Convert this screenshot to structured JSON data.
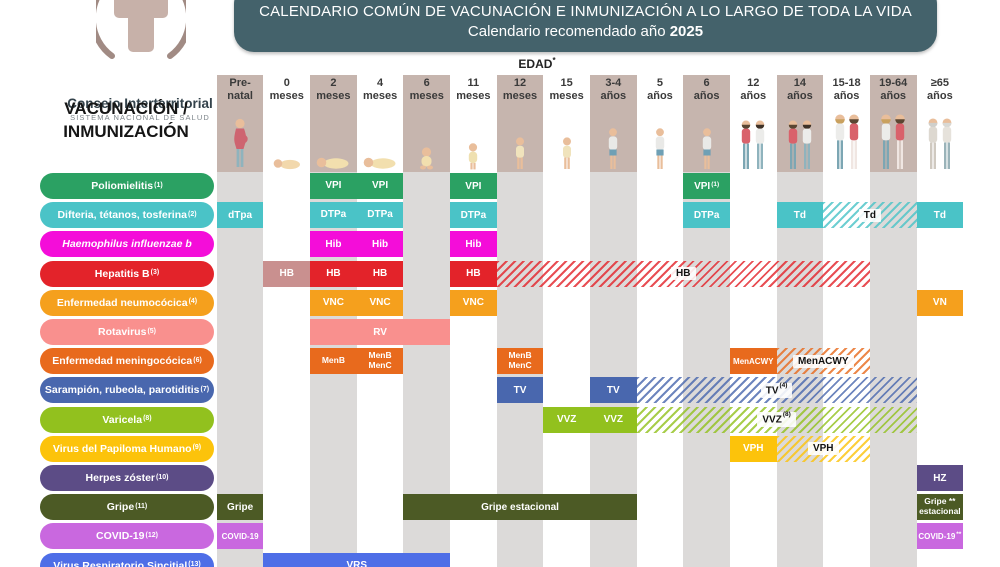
{
  "header": {
    "logo": {
      "title": "Consejo Interterritorial",
      "subtitle": "SISTEMA NACIONAL DE SALUD"
    },
    "banner": {
      "line1": "CALENDARIO COMÚN DE VACUNACIÓN E INMUNIZACIÓN A LO LARGO DE TODA LA VIDA",
      "line2_prefix": "Calendario recomendado año ",
      "line2_year": "2025"
    },
    "age_axis_label": "EDAD",
    "age_axis_sup": "*",
    "left_heading_lines": [
      "VACUNACIÓN /",
      "INMUNIZACIÓN"
    ]
  },
  "colors": {
    "banner": "#44626B",
    "chip": "#C6B5AE",
    "stripe": "#DCDAD9"
  },
  "chart_data": {
    "type": "table",
    "title": "CALENDARIO COMÚN DE VACUNACIÓN E INMUNIZACIÓN A LO LARGO DE TODA LA VIDA",
    "subtitle": "Calendario recomendado año 2025",
    "x_axis": "EDAD*",
    "age_columns": [
      {
        "lines": [
          "Pre-",
          "natal"
        ],
        "chip": true,
        "icon": "pregnant-woman-icon"
      },
      {
        "lines": [
          "0",
          "meses"
        ],
        "chip": false,
        "icon": "newborn-icon"
      },
      {
        "lines": [
          "2",
          "meses"
        ],
        "chip": true,
        "icon": "baby-lying-icon"
      },
      {
        "lines": [
          "4",
          "meses"
        ],
        "chip": false,
        "icon": "baby-lying-icon"
      },
      {
        "lines": [
          "6",
          "meses"
        ],
        "chip": true,
        "icon": "baby-sitting-icon"
      },
      {
        "lines": [
          "11",
          "meses"
        ],
        "chip": false,
        "icon": "baby-standing-icon"
      },
      {
        "lines": [
          "12",
          "meses"
        ],
        "chip": true,
        "icon": "toddler-icon"
      },
      {
        "lines": [
          "15",
          "meses"
        ],
        "chip": false,
        "icon": "toddler-icon"
      },
      {
        "lines": [
          "3-4",
          "años"
        ],
        "chip": true,
        "icon": "child-icon"
      },
      {
        "lines": [
          "5",
          "años"
        ],
        "chip": false,
        "icon": "child-icon"
      },
      {
        "lines": [
          "6",
          "años"
        ],
        "chip": true,
        "icon": "child-icon"
      },
      {
        "lines": [
          "12",
          "años"
        ],
        "chip": false,
        "icon": "teens-icon"
      },
      {
        "lines": [
          "14",
          "años"
        ],
        "chip": true,
        "icon": "teens-icon"
      },
      {
        "lines": [
          "15-18",
          "años"
        ],
        "chip": false,
        "icon": "adults-icon"
      },
      {
        "lines": [
          "19-64",
          "años"
        ],
        "chip": true,
        "icon": "adults-icon"
      },
      {
        "lines": [
          "≥65",
          "años"
        ],
        "chip": false,
        "icon": "elderly-couple-icon"
      }
    ],
    "rows": [
      {
        "name": "Poliomielitis",
        "sup": "(1)",
        "color": "#2BA163",
        "bars": [
          {
            "from": 2,
            "to": 3,
            "type": "solid",
            "labels": [
              "VPI",
              "VPI"
            ]
          },
          {
            "from": 5,
            "to": 5,
            "type": "solid",
            "labels": [
              "VPI"
            ]
          },
          {
            "from": 10,
            "to": 10,
            "type": "solid",
            "labels": [
              {
                "t": "VPI",
                "sup": "(1)"
              }
            ]
          }
        ]
      },
      {
        "name": "Difteria, tétanos, tosferina",
        "sup": "(2)",
        "color": "#4AC3C7",
        "bars": [
          {
            "from": 0,
            "to": 0,
            "type": "solid",
            "labels": [
              "dTpa"
            ]
          },
          {
            "from": 2,
            "to": 3,
            "type": "solid",
            "labels": [
              "DTPa",
              "DTPa"
            ]
          },
          {
            "from": 5,
            "to": 5,
            "type": "solid",
            "labels": [
              "DTPa"
            ]
          },
          {
            "from": 10,
            "to": 10,
            "type": "solid",
            "labels": [
              "DTPa"
            ]
          },
          {
            "from": 12,
            "to": 12,
            "type": "solid",
            "labels": [
              "Td"
            ]
          },
          {
            "from": 13,
            "to": 14,
            "type": "hatch",
            "labels": [
              "Td"
            ]
          },
          {
            "from": 15,
            "to": 15,
            "type": "solid",
            "labels": [
              "Td"
            ]
          }
        ]
      },
      {
        "name": "Haemophilus influenzae b",
        "sup": "",
        "italic": true,
        "color": "#F40DD9",
        "bars": [
          {
            "from": 2,
            "to": 3,
            "type": "solid",
            "labels": [
              "Hib",
              "Hib"
            ]
          },
          {
            "from": 5,
            "to": 5,
            "type": "solid",
            "labels": [
              "Hib"
            ]
          }
        ]
      },
      {
        "name": "Hepatitis B",
        "sup": "(3)",
        "color": "#E3232A",
        "bars": [
          {
            "from": 1,
            "to": 1,
            "type": "solid",
            "bg": "#C9908F",
            "labels": [
              "HB"
            ]
          },
          {
            "from": 2,
            "to": 3,
            "type": "solid",
            "labels": [
              "HB",
              "HB"
            ]
          },
          {
            "from": 5,
            "to": 5,
            "type": "solid",
            "labels": [
              "HB"
            ]
          },
          {
            "from": 6,
            "to": 13,
            "type": "hatch",
            "labels": [
              "HB"
            ]
          }
        ]
      },
      {
        "name": "Enfermedad neumocócica",
        "sup": "(4)",
        "color": "#F5A01D",
        "bars": [
          {
            "from": 2,
            "to": 3,
            "type": "solid",
            "labels": [
              "VNC",
              "VNC"
            ]
          },
          {
            "from": 5,
            "to": 5,
            "type": "solid",
            "labels": [
              "VNC"
            ]
          },
          {
            "from": 15,
            "to": 15,
            "type": "solid",
            "labels": [
              "VN"
            ]
          }
        ]
      },
      {
        "name": "Rotavirus",
        "sup": "(5)",
        "color": "#F9908E",
        "bars": [
          {
            "from": 2,
            "to": 4,
            "type": "solid",
            "labels": [
              "RV"
            ]
          }
        ]
      },
      {
        "name": "Enfermedad meningocócica",
        "sup": "(6)",
        "color": "#E86A1D",
        "bars": [
          {
            "from": 2,
            "to": 3,
            "type": "solid",
            "labels": [
              "MenB",
              {
                "lines": [
                  "MenB",
                  "MenC"
                ]
              }
            ]
          },
          {
            "from": 6,
            "to": 6,
            "type": "solid",
            "labels": [
              {
                "lines": [
                  "MenB",
                  "MenC"
                ]
              }
            ]
          },
          {
            "from": 11,
            "to": 11,
            "type": "solid",
            "small": true,
            "labels": [
              "MenACWY"
            ]
          },
          {
            "from": 12,
            "to": 13,
            "type": "hatch",
            "labels": [
              "MenACWY"
            ]
          }
        ]
      },
      {
        "name": "Sarampión, rubeola, parotiditis",
        "sup": "(7)",
        "color": "#4967AE",
        "bars": [
          {
            "from": 6,
            "to": 6,
            "type": "solid",
            "labels": [
              "TV"
            ]
          },
          {
            "from": 8,
            "to": 8,
            "type": "solid",
            "labels": [
              "TV"
            ]
          },
          {
            "from": 9,
            "to": 14,
            "type": "hatch",
            "labels": [
              {
                "t": "TV",
                "sup": "(4)"
              }
            ]
          }
        ]
      },
      {
        "name": "Varicela",
        "sup": "(8)",
        "color": "#92C11E",
        "bars": [
          {
            "from": 7,
            "to": 8,
            "type": "solid",
            "labels": [
              "VVZ",
              "VVZ"
            ]
          },
          {
            "from": 9,
            "to": 14,
            "type": "hatch",
            "labels": [
              {
                "t": "VVZ",
                "sup": "(8)"
              }
            ]
          }
        ]
      },
      {
        "name": "Virus del Papiloma Humano",
        "sup": "(9)",
        "color": "#FCC30B",
        "bars": [
          {
            "from": 11,
            "to": 11,
            "type": "solid",
            "labels": [
              "VPH"
            ]
          },
          {
            "from": 12,
            "to": 13,
            "type": "hatch",
            "labels": [
              "VPH"
            ]
          }
        ]
      },
      {
        "name": "Herpes zóster",
        "sup": "(10)",
        "color": "#5C4C86",
        "bars": [
          {
            "from": 15,
            "to": 15,
            "type": "solid",
            "labels": [
              "HZ"
            ]
          }
        ]
      },
      {
        "name": "Gripe",
        "sup": "(11)",
        "color": "#4C5A25",
        "bars": [
          {
            "from": 0,
            "to": 0,
            "type": "solid",
            "labels": [
              "Gripe"
            ]
          },
          {
            "from": 4,
            "to": 8,
            "type": "solid",
            "labels": [
              "Gripe estacional"
            ]
          },
          {
            "from": 15,
            "to": 15,
            "type": "solid",
            "small": true,
            "labels": [
              {
                "lines": [
                  "Gripe **",
                  "estacional"
                ]
              }
            ]
          }
        ]
      },
      {
        "name": "COVID-19",
        "sup": "(12)",
        "color": "#C968DF",
        "bars": [
          {
            "from": 0,
            "to": 0,
            "type": "solid",
            "small": true,
            "labels": [
              "COVID-19"
            ]
          },
          {
            "from": 15,
            "to": 15,
            "type": "solid",
            "small": true,
            "labels": [
              {
                "t": "COVID-19",
                "sup": "**"
              }
            ]
          }
        ]
      },
      {
        "name": "Virus Respiratorio Sincitial",
        "sup": "(13)",
        "color": "#4E6EE7",
        "bars": [
          {
            "from": 1,
            "to": 4,
            "type": "solid",
            "labels": [
              "VRS"
            ]
          }
        ]
      }
    ]
  }
}
